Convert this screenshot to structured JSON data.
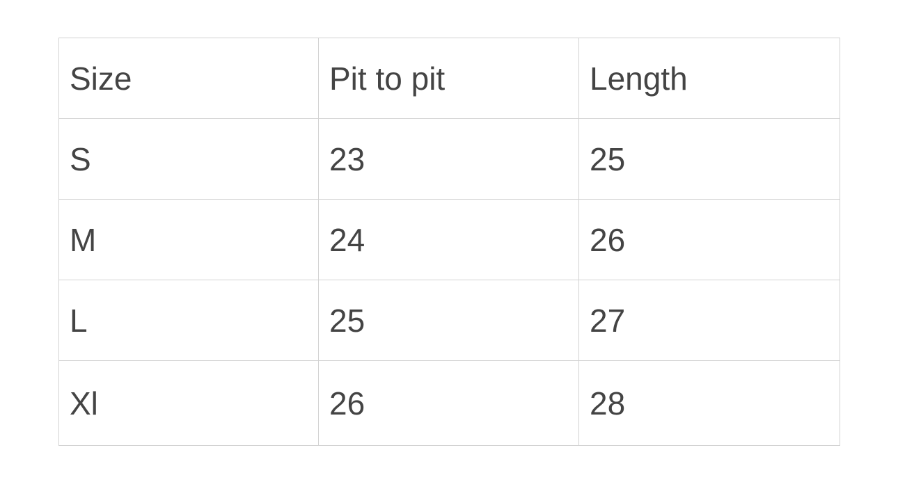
{
  "table": {
    "headers": [
      "Size",
      "Pit to pit",
      "Length"
    ],
    "rows": [
      [
        "S",
        "23",
        "25"
      ],
      [
        "M",
        "24",
        "26"
      ],
      [
        "L",
        "25",
        "27"
      ],
      [
        "Xl",
        "26",
        "28"
      ]
    ]
  },
  "colors": {
    "text": "#444444",
    "border": "#d2d2d2"
  }
}
